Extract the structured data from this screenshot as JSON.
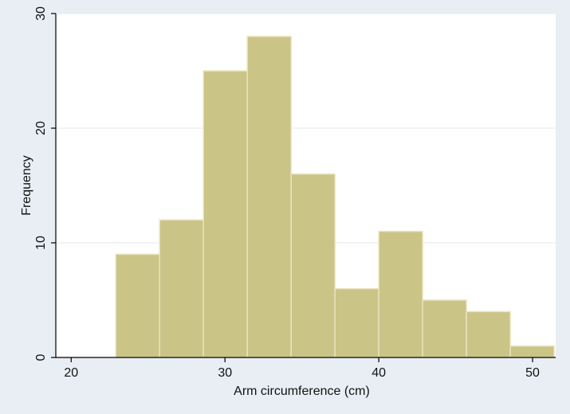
{
  "chart_data": {
    "type": "bar",
    "subtype": "histogram",
    "xlabel": "Arm circumference (cm)",
    "ylabel": "Frequency",
    "xlim": [
      19,
      51.5
    ],
    "ylim": [
      0,
      30
    ],
    "xticks": [
      20,
      30,
      40,
      50
    ],
    "yticks": [
      0,
      10,
      20,
      30
    ],
    "grid": true,
    "bins": [
      {
        "x0": 22.9,
        "x1": 25.75,
        "value": 9
      },
      {
        "x0": 25.75,
        "x1": 28.6,
        "value": 12
      },
      {
        "x0": 28.6,
        "x1": 31.45,
        "value": 25
      },
      {
        "x0": 31.45,
        "x1": 34.3,
        "value": 28
      },
      {
        "x0": 34.3,
        "x1": 37.15,
        "value": 16
      },
      {
        "x0": 37.15,
        "x1": 40.0,
        "value": 6
      },
      {
        "x0": 40.0,
        "x1": 42.85,
        "value": 11
      },
      {
        "x0": 42.85,
        "x1": 45.7,
        "value": 5
      },
      {
        "x0": 45.7,
        "x1": 48.55,
        "value": 4
      },
      {
        "x0": 48.55,
        "x1": 51.4,
        "value": 1
      }
    ],
    "colors": {
      "bar_fill": "#cbc487",
      "bar_edge": "#e9e3bd",
      "outer_background": "#e8eef3",
      "plot_background": "#ffffff",
      "grid": "#e6edf2",
      "axis": "#000000"
    }
  }
}
